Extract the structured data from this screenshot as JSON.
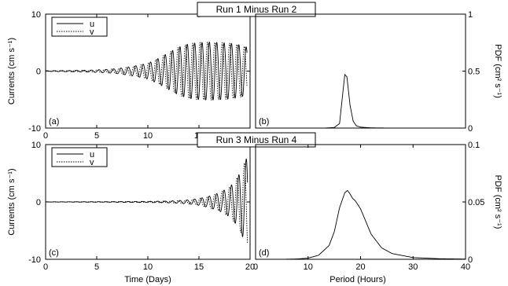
{
  "figure": {
    "x_label_left": "Time (Days)",
    "x_label_right": "Period (Hours)"
  },
  "chart_data": [
    {
      "panel": "(a)",
      "type": "line",
      "title": "Run 1 Minus Run 2",
      "ylabel": "Currents (cm s⁻¹)",
      "xlim": [
        0,
        20
      ],
      "ylim": [
        -10,
        10
      ],
      "x_ticks": [
        0,
        5,
        10,
        15,
        20
      ],
      "y_ticks": [
        -10,
        0,
        10
      ],
      "legend": {
        "placement": "top-left",
        "entries": [
          "u",
          "v"
        ]
      },
      "series": [
        {
          "name": "u",
          "style": "solid",
          "x": [
            0,
            2,
            4,
            6,
            7,
            8,
            9,
            10,
            11,
            12,
            13,
            14,
            15,
            16,
            17,
            18,
            19,
            19.7
          ],
          "amplitude": [
            0.05,
            0.1,
            0.15,
            0.3,
            0.45,
            0.7,
            1.0,
            1.4,
            2.2,
            3.2,
            4.2,
            4.8,
            5.0,
            5.1,
            5.0,
            4.9,
            4.6,
            4.2
          ],
          "period_days": 0.72
        },
        {
          "name": "v",
          "style": "dotted",
          "x": [
            0,
            2,
            4,
            6,
            7,
            8,
            9,
            10,
            11,
            12,
            13,
            14,
            15,
            16,
            17,
            18,
            19,
            19.7
          ],
          "amplitude": [
            0.05,
            0.1,
            0.15,
            0.3,
            0.45,
            0.7,
            1.0,
            1.4,
            2.2,
            3.2,
            4.2,
            4.8,
            5.0,
            5.1,
            5.0,
            4.9,
            4.6,
            4.2
          ],
          "period_days": 0.72
        }
      ]
    },
    {
      "panel": "(b)",
      "type": "line",
      "ylabel": "PDF (cm² s⁻¹)",
      "xlim": [
        0,
        40
      ],
      "ylim": [
        0,
        1
      ],
      "y_ticks": [
        0,
        0.5,
        1
      ],
      "series": [
        {
          "name": "",
          "x": [
            0,
            13,
            15,
            16,
            16.6,
            17,
            17.4,
            18,
            18.6,
            19.2,
            20,
            22,
            26,
            40
          ],
          "y": [
            0,
            0,
            0.005,
            0.04,
            0.3,
            0.47,
            0.45,
            0.2,
            0.06,
            0.02,
            0.008,
            0.002,
            0,
            0
          ]
        }
      ]
    },
    {
      "panel": "(c)",
      "type": "line",
      "title": "Run 3 Minus Run 4",
      "ylabel": "Currents (cm s⁻¹)",
      "xlim": [
        0,
        20
      ],
      "ylim": [
        -10,
        10
      ],
      "x_ticks": [
        0,
        5,
        10,
        15,
        20
      ],
      "y_ticks": [
        -10,
        0,
        10
      ],
      "legend": {
        "placement": "top-left",
        "entries": [
          "u",
          "v"
        ]
      },
      "series": [
        {
          "name": "u",
          "style": "solid",
          "x": [
            0,
            6,
            10,
            12,
            13,
            14,
            15,
            16,
            17,
            18,
            18.5,
            19,
            19.5,
            19.75
          ],
          "amplitude": [
            0.02,
            0.05,
            0.1,
            0.15,
            0.25,
            0.35,
            0.6,
            1.0,
            1.6,
            2.6,
            3.6,
            5.0,
            7.0,
            8.0
          ],
          "period_days": 0.72
        },
        {
          "name": "v",
          "style": "dotted",
          "x": [
            0,
            6,
            10,
            12,
            13,
            14,
            15,
            16,
            17,
            18,
            18.5,
            19,
            19.5,
            19.75
          ],
          "amplitude": [
            0.02,
            0.05,
            0.1,
            0.15,
            0.25,
            0.35,
            0.6,
            1.0,
            1.6,
            2.6,
            3.6,
            5.0,
            7.0,
            8.0
          ],
          "period_days": 0.72
        }
      ]
    },
    {
      "panel": "(d)",
      "type": "line",
      "ylabel": "PDF (cm² s⁻¹)",
      "xlim": [
        0,
        40
      ],
      "ylim": [
        0,
        0.1
      ],
      "x_ticks": [
        0,
        10,
        20,
        30,
        40
      ],
      "y_ticks": [
        0,
        0.05,
        0.1
      ],
      "series": [
        {
          "name": "",
          "x": [
            5,
            8,
            10,
            12,
            14,
            15,
            16,
            17,
            17.5,
            18,
            18.5,
            19,
            20,
            21,
            22,
            24,
            26,
            30,
            35,
            40
          ],
          "y": [
            0,
            0.0003,
            0.001,
            0.0035,
            0.012,
            0.024,
            0.045,
            0.058,
            0.06,
            0.057,
            0.053,
            0.051,
            0.044,
            0.033,
            0.022,
            0.01,
            0.005,
            0.0015,
            0.0005,
            0.0002
          ]
        }
      ]
    }
  ]
}
